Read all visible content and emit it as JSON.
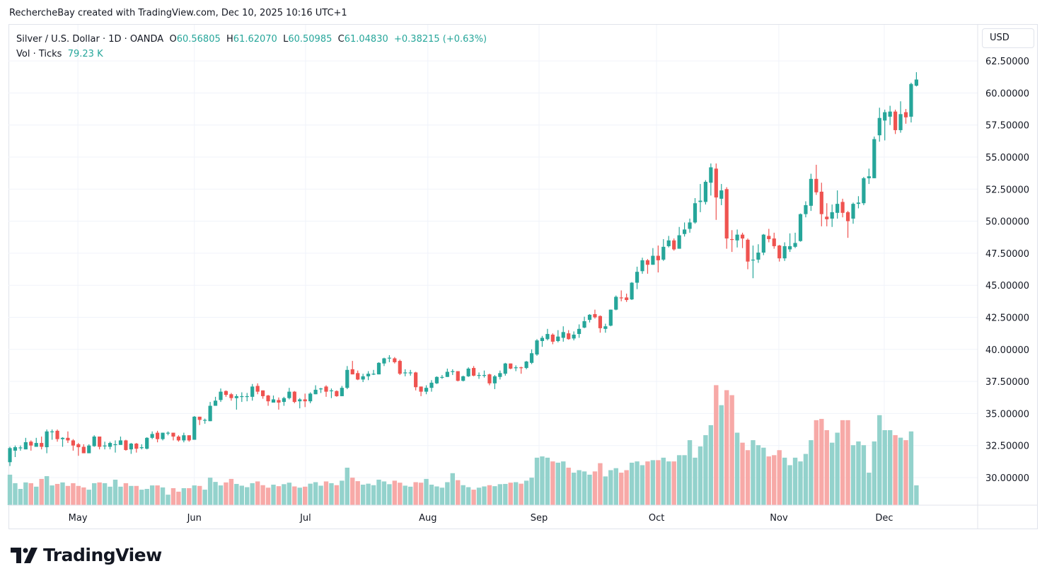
{
  "caption": "RechercheBay created with TradingView.com, Dec 10, 2025 10:16 UTC+1",
  "legend": {
    "symbol": "Silver / U.S. Dollar · 1D · OANDA",
    "o_label": "O",
    "o": "60.56805",
    "h_label": "H",
    "h": "61.62070",
    "l_label": "L",
    "l": "60.50985",
    "c_label": "C",
    "c": "61.04830",
    "change": "+0.38215 (+0.63%)",
    "vol_label": "Vol · Ticks",
    "vol": "79.23 K"
  },
  "currency": "USD",
  "logo_text": "TradingView",
  "colors": {
    "up": "#26a69a",
    "down": "#ef5350",
    "vol_up": "#93d2cc",
    "vol_down": "#f7a9a7",
    "grid": "#f0f3fa"
  },
  "chart_data": {
    "type": "candlestick",
    "title": "Silver / U.S. Dollar · 1D · OANDA",
    "ylim": [
      28.3,
      63.5
    ],
    "y_ticks": [
      "30.00000",
      "32.50000",
      "35.00000",
      "37.50000",
      "40.00000",
      "42.50000",
      "45.00000",
      "47.50000",
      "50.00000",
      "52.50000",
      "55.00000",
      "57.50000",
      "60.00000",
      "62.50000"
    ],
    "x_ticks": [
      "May",
      "Jun",
      "Jul",
      "Aug",
      "Sep",
      "Oct",
      "Nov",
      "Dec"
    ],
    "grid": true,
    "volume_unit": "K ticks",
    "candles_ohlcv": [
      [
        31.2,
        32.4,
        30.9,
        32.3,
        122
      ],
      [
        32.1,
        32.5,
        31.6,
        32.37,
        88
      ],
      [
        32.35,
        32.5,
        32.1,
        32.35,
        65
      ],
      [
        32.2,
        33.1,
        32.2,
        32.76,
        91
      ],
      [
        32.8,
        32.9,
        32.1,
        32.5,
        88
      ],
      [
        32.4,
        33.1,
        32.4,
        32.7,
        74
      ],
      [
        32.7,
        33.2,
        32.2,
        32.4,
        105
      ],
      [
        32.37,
        33.75,
        31.9,
        33.6,
        116
      ],
      [
        33.6,
        33.75,
        32.95,
        33.6,
        79
      ],
      [
        33.65,
        33.75,
        32.8,
        33.0,
        85
      ],
      [
        33.0,
        33.15,
        32.4,
        33.1,
        91
      ],
      [
        33.1,
        33.6,
        32.7,
        32.9,
        77
      ],
      [
        32.9,
        33.0,
        32.1,
        32.5,
        88
      ],
      [
        32.6,
        32.7,
        31.7,
        32.37,
        77
      ],
      [
        32.4,
        32.6,
        31.9,
        31.9,
        71
      ],
      [
        31.9,
        32.6,
        31.9,
        32.5,
        62
      ],
      [
        32.45,
        33.3,
        32.4,
        33.2,
        88
      ],
      [
        33.2,
        33.2,
        32.2,
        32.4,
        91
      ],
      [
        32.45,
        32.8,
        32.2,
        32.5,
        88
      ],
      [
        32.4,
        32.8,
        32.2,
        32.7,
        74
      ],
      [
        32.6,
        32.9,
        31.95,
        32.6,
        102
      ],
      [
        32.55,
        33.2,
        32.55,
        32.9,
        74
      ],
      [
        32.9,
        32.95,
        32.1,
        32.15,
        88
      ],
      [
        32.2,
        32.7,
        31.85,
        32.65,
        77
      ],
      [
        32.65,
        32.7,
        31.95,
        32.25,
        77
      ],
      [
        32.3,
        32.6,
        32.2,
        32.37,
        62
      ],
      [
        32.25,
        33.15,
        32.2,
        33.1,
        65
      ],
      [
        33.1,
        33.6,
        33.0,
        33.4,
        79
      ],
      [
        33.5,
        33.65,
        32.75,
        33.0,
        79
      ],
      [
        33.0,
        33.5,
        32.9,
        33.5,
        71
      ],
      [
        33.5,
        33.6,
        33.3,
        33.5,
        42
      ],
      [
        33.5,
        33.5,
        32.9,
        33.2,
        68
      ],
      [
        33.2,
        33.3,
        32.8,
        32.9,
        54
      ],
      [
        32.9,
        33.5,
        32.75,
        33.3,
        68
      ],
      [
        33.3,
        33.3,
        32.8,
        32.9,
        68
      ],
      [
        32.95,
        34.8,
        32.95,
        34.75,
        79
      ],
      [
        34.75,
        34.75,
        34.1,
        34.5,
        77
      ],
      [
        34.5,
        34.6,
        34.2,
        34.5,
        62
      ],
      [
        34.4,
        35.9,
        34.4,
        35.6,
        110
      ],
      [
        35.6,
        36.3,
        35.6,
        36.0,
        93
      ],
      [
        36.05,
        36.95,
        35.9,
        36.7,
        79
      ],
      [
        36.75,
        36.8,
        36.3,
        36.45,
        91
      ],
      [
        36.5,
        36.6,
        36.0,
        36.2,
        105
      ],
      [
        36.2,
        36.5,
        35.3,
        36.35,
        85
      ],
      [
        36.35,
        36.65,
        35.9,
        36.35,
        78
      ],
      [
        36.35,
        36.6,
        35.95,
        36.35,
        72
      ],
      [
        36.3,
        37.3,
        36.0,
        37.1,
        88
      ],
      [
        37.15,
        37.35,
        36.5,
        36.7,
        95
      ],
      [
        36.8,
        36.8,
        36.15,
        36.35,
        80
      ],
      [
        36.4,
        36.45,
        35.6,
        35.95,
        70
      ],
      [
        35.85,
        36.4,
        35.85,
        36.1,
        82
      ],
      [
        36.05,
        36.25,
        35.3,
        35.85,
        76
      ],
      [
        35.9,
        36.3,
        35.6,
        36.2,
        84
      ],
      [
        36.2,
        37.0,
        36.1,
        36.7,
        90
      ],
      [
        36.7,
        36.75,
        35.8,
        35.9,
        75
      ],
      [
        35.95,
        36.2,
        35.4,
        36.1,
        70
      ],
      [
        36.1,
        36.55,
        35.5,
        35.95,
        74
      ],
      [
        35.95,
        36.65,
        35.8,
        36.55,
        86
      ],
      [
        36.5,
        37.2,
        36.5,
        36.85,
        92
      ],
      [
        36.95,
        37.0,
        36.6,
        36.95,
        78
      ],
      [
        37.1,
        37.2,
        36.3,
        36.7,
        95
      ],
      [
        36.8,
        36.95,
        36.2,
        36.8,
        88
      ],
      [
        36.75,
        36.8,
        36.3,
        36.35,
        80
      ],
      [
        36.35,
        37.15,
        36.35,
        37.0,
        98
      ],
      [
        37.0,
        38.7,
        36.9,
        38.4,
        150
      ],
      [
        38.45,
        39.1,
        38.05,
        38.05,
        110
      ],
      [
        38.15,
        38.35,
        37.6,
        37.65,
        96
      ],
      [
        37.65,
        38.1,
        37.45,
        37.9,
        82
      ],
      [
        37.9,
        38.3,
        37.6,
        38.1,
        86
      ],
      [
        38.1,
        38.4,
        38.0,
        38.1,
        80
      ],
      [
        38.05,
        39.0,
        38.05,
        38.95,
        102
      ],
      [
        38.9,
        39.35,
        38.7,
        39.3,
        95
      ],
      [
        39.35,
        39.55,
        39.0,
        39.35,
        84
      ],
      [
        39.3,
        39.4,
        38.9,
        39.0,
        98
      ],
      [
        39.1,
        39.2,
        38.0,
        38.1,
        90
      ],
      [
        38.2,
        38.45,
        37.9,
        38.2,
        78
      ],
      [
        38.2,
        38.4,
        37.95,
        38.2,
        74
      ],
      [
        38.2,
        38.25,
        36.8,
        37.05,
        92
      ],
      [
        37.1,
        37.1,
        36.35,
        36.7,
        90
      ],
      [
        36.7,
        37.2,
        36.5,
        37.0,
        105
      ],
      [
        37.0,
        37.6,
        36.7,
        37.4,
        82
      ],
      [
        37.35,
        37.9,
        37.3,
        37.85,
        75
      ],
      [
        37.85,
        38.0,
        37.7,
        37.85,
        70
      ],
      [
        37.85,
        38.5,
        37.85,
        38.25,
        92
      ],
      [
        38.25,
        38.45,
        38.0,
        38.3,
        128
      ],
      [
        38.3,
        38.3,
        37.5,
        37.55,
        100
      ],
      [
        37.55,
        37.95,
        37.5,
        37.9,
        80
      ],
      [
        37.9,
        38.6,
        37.85,
        38.5,
        72
      ],
      [
        38.55,
        38.7,
        37.9,
        37.95,
        62
      ],
      [
        38.0,
        38.2,
        37.7,
        38.0,
        70
      ],
      [
        38.0,
        38.35,
        37.8,
        38.0,
        75
      ],
      [
        38.05,
        38.1,
        37.2,
        37.35,
        80
      ],
      [
        37.35,
        38.0,
        36.9,
        37.9,
        76
      ],
      [
        37.85,
        38.35,
        37.65,
        38.15,
        84
      ],
      [
        38.1,
        38.95,
        37.95,
        38.9,
        85
      ],
      [
        38.9,
        38.9,
        38.45,
        38.5,
        90
      ],
      [
        38.55,
        38.75,
        38.3,
        38.6,
        92
      ],
      [
        38.6,
        38.65,
        38.1,
        38.55,
        86
      ],
      [
        38.55,
        39.1,
        38.45,
        39.05,
        98
      ],
      [
        38.95,
        40.0,
        38.85,
        39.7,
        110
      ],
      [
        39.6,
        40.8,
        39.5,
        40.7,
        190
      ],
      [
        40.65,
        41.05,
        40.2,
        40.9,
        195
      ],
      [
        40.8,
        41.6,
        40.7,
        41.2,
        190
      ],
      [
        41.15,
        41.25,
        40.4,
        40.6,
        175
      ],
      [
        40.65,
        41.5,
        40.55,
        41.0,
        170
      ],
      [
        40.9,
        41.8,
        40.6,
        41.35,
        175
      ],
      [
        41.25,
        41.5,
        40.75,
        40.8,
        150
      ],
      [
        40.85,
        41.4,
        40.7,
        41.15,
        130
      ],
      [
        41.2,
        41.95,
        40.9,
        41.6,
        140
      ],
      [
        41.7,
        42.55,
        41.65,
        42.2,
        135
      ],
      [
        42.3,
        42.75,
        42.1,
        42.7,
        122
      ],
      [
        42.75,
        43.1,
        42.4,
        42.5,
        135
      ],
      [
        42.6,
        42.65,
        41.3,
        41.65,
        168
      ],
      [
        41.6,
        42.0,
        41.3,
        41.8,
        115
      ],
      [
        41.85,
        43.1,
        41.8,
        43.1,
        140
      ],
      [
        43.1,
        44.2,
        43.05,
        44.1,
        148
      ],
      [
        44.05,
        44.6,
        43.75,
        44.0,
        130
      ],
      [
        44.05,
        44.35,
        43.7,
        43.85,
        140
      ],
      [
        43.9,
        45.25,
        43.85,
        45.2,
        170
      ],
      [
        45.2,
        46.45,
        44.7,
        46.05,
        175
      ],
      [
        46.1,
        47.15,
        45.9,
        46.95,
        160
      ],
      [
        46.95,
        47.05,
        45.9,
        46.6,
        175
      ],
      [
        46.6,
        47.9,
        46.6,
        47.3,
        180
      ],
      [
        47.3,
        48.1,
        46.0,
        46.95,
        180
      ],
      [
        47.0,
        48.6,
        46.9,
        48.0,
        190
      ],
      [
        48.05,
        48.85,
        47.95,
        48.5,
        175
      ],
      [
        48.5,
        48.65,
        47.7,
        47.8,
        175
      ],
      [
        47.85,
        49.55,
        47.85,
        48.9,
        200
      ],
      [
        49.0,
        49.9,
        48.8,
        49.35,
        200
      ],
      [
        49.4,
        50.2,
        49.1,
        49.9,
        260
      ],
      [
        49.9,
        51.8,
        49.8,
        51.4,
        190
      ],
      [
        51.5,
        52.9,
        50.7,
        51.6,
        235
      ],
      [
        51.5,
        53.2,
        51.3,
        53.07,
        280
      ],
      [
        53.0,
        54.5,
        52.0,
        54.2,
        320
      ],
      [
        54.1,
        54.5,
        50.1,
        51.85,
        480
      ],
      [
        51.75,
        52.9,
        51.25,
        52.4,
        400
      ],
      [
        52.5,
        52.65,
        47.85,
        48.65,
        460
      ],
      [
        48.6,
        49.3,
        47.6,
        48.55,
        440
      ],
      [
        48.5,
        49.35,
        47.95,
        48.95,
        290
      ],
      [
        48.95,
        49.1,
        47.9,
        48.65,
        250
      ],
      [
        48.55,
        48.65,
        46.25,
        46.85,
        220
      ],
      [
        47.0,
        48.1,
        45.55,
        47.0,
        260
      ],
      [
        47.0,
        48.2,
        46.75,
        47.55,
        240
      ],
      [
        47.55,
        49.0,
        47.35,
        48.95,
        230
      ],
      [
        48.85,
        49.4,
        48.35,
        48.6,
        195
      ],
      [
        48.65,
        49.1,
        47.85,
        48.05,
        200
      ],
      [
        48.1,
        48.15,
        46.85,
        47.1,
        220
      ],
      [
        47.1,
        48.35,
        46.9,
        48.05,
        190
      ],
      [
        47.8,
        49.05,
        47.6,
        48.05,
        160
      ],
      [
        48.0,
        49.1,
        47.9,
        48.3,
        190
      ],
      [
        48.45,
        50.6,
        48.4,
        50.55,
        175
      ],
      [
        50.55,
        51.55,
        50.3,
        51.25,
        205
      ],
      [
        51.2,
        53.7,
        50.8,
        53.3,
        260
      ],
      [
        53.3,
        54.4,
        52.05,
        52.25,
        340
      ],
      [
        52.3,
        53.0,
        49.6,
        50.55,
        345
      ],
      [
        50.35,
        51.4,
        49.6,
        50.15,
        300
      ],
      [
        50.2,
        51.3,
        49.55,
        50.7,
        250
      ],
      [
        50.65,
        52.4,
        50.2,
        51.35,
        290
      ],
      [
        51.5,
        51.75,
        50.3,
        50.65,
        340
      ],
      [
        50.7,
        50.8,
        48.7,
        50.0,
        340
      ],
      [
        50.2,
        51.45,
        49.8,
        51.35,
        240
      ],
      [
        51.35,
        51.95,
        51.0,
        51.45,
        255
      ],
      [
        51.4,
        53.45,
        51.25,
        53.35,
        240
      ],
      [
        53.35,
        54.1,
        52.9,
        53.5,
        130
      ],
      [
        53.35,
        56.6,
        53.35,
        56.4,
        255
      ],
      [
        56.7,
        58.85,
        56.2,
        58.05,
        360
      ],
      [
        57.85,
        58.7,
        56.3,
        58.5,
        300
      ],
      [
        58.15,
        59.0,
        57.5,
        58.55,
        300
      ],
      [
        58.55,
        58.7,
        56.8,
        57.1,
        280
      ],
      [
        57.1,
        59.35,
        56.9,
        58.35,
        270
      ],
      [
        58.5,
        58.75,
        57.6,
        58.1,
        260
      ],
      [
        58.15,
        60.8,
        57.7,
        60.7,
        295
      ],
      [
        60.56805,
        61.6207,
        60.50985,
        61.0483,
        79.23
      ]
    ]
  }
}
